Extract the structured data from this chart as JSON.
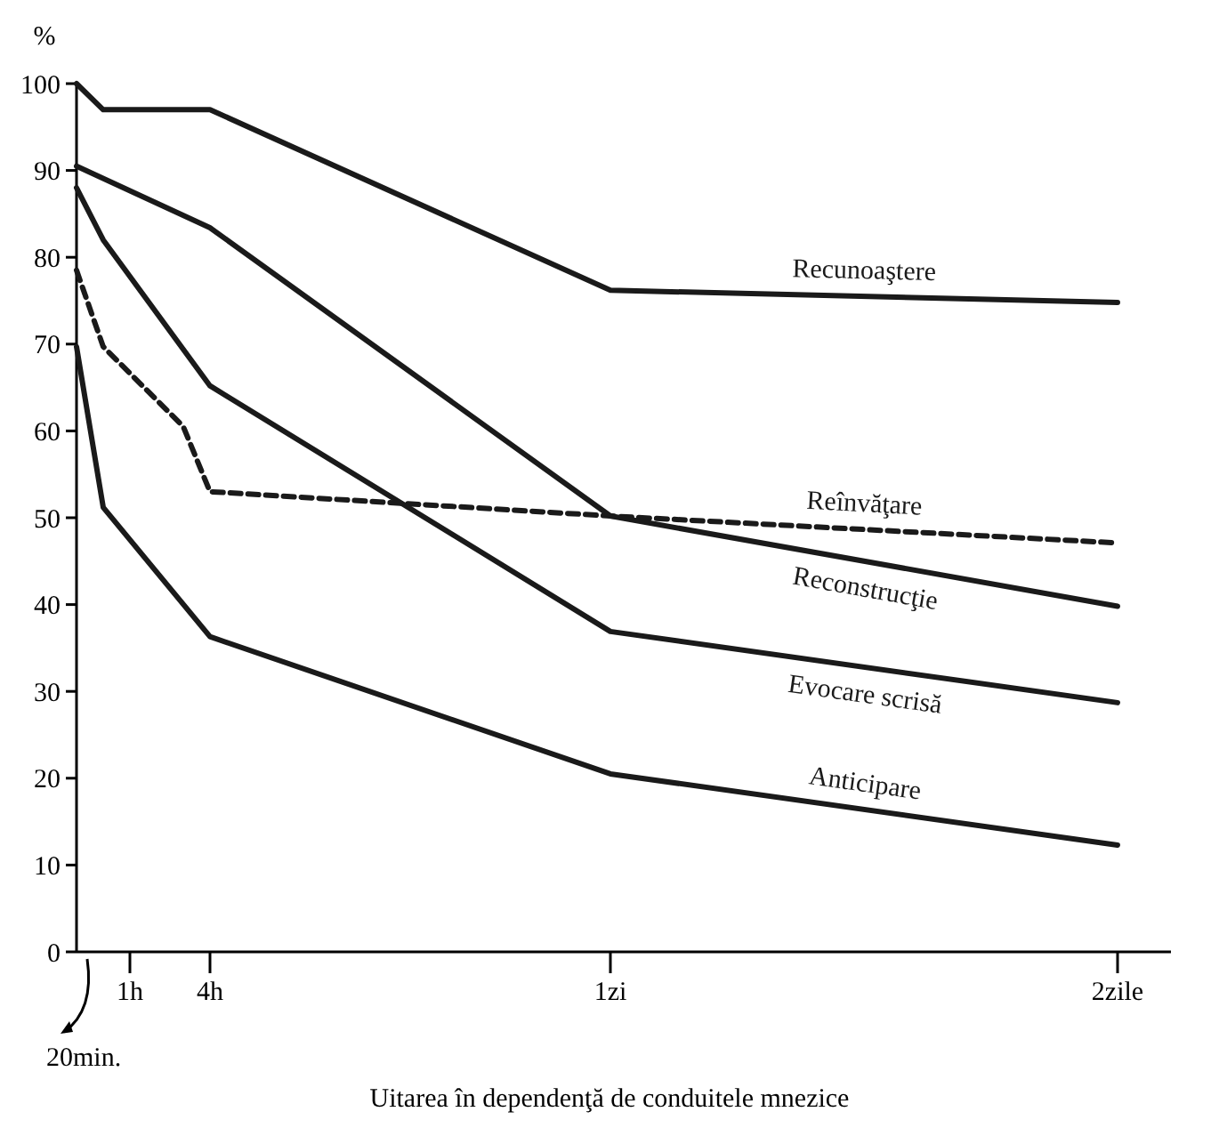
{
  "chart_data": {
    "type": "line",
    "title": "Uitarea în dependenţă de conduitele mnezice",
    "ylabel": "%",
    "ylim": [
      0,
      100
    ],
    "categories": [
      null,
      null,
      "1h",
      null,
      null,
      "4h",
      null,
      null,
      null,
      null,
      null,
      null,
      null,
      null,
      null,
      null,
      null,
      null,
      null,
      null,
      "1zi",
      null,
      null,
      null,
      null,
      null,
      null,
      null,
      null,
      null,
      null,
      null,
      null,
      null,
      null,
      null,
      null,
      null,
      null,
      "2zile"
    ],
    "yticks": [
      0,
      10,
      20,
      30,
      40,
      50,
      60,
      70,
      80,
      90,
      100
    ],
    "grid": false,
    "legend": false,
    "marker": "none",
    "annotations": [
      "20min."
    ],
    "series": [
      {
        "name": "Recunoaştere",
        "color": "#1a1a1a",
        "line_style": "solid",
        "values": [
          100,
          97,
          null,
          null,
          null,
          97,
          null,
          null,
          null,
          null,
          null,
          null,
          null,
          null,
          null,
          null,
          null,
          null,
          null,
          null,
          76.2,
          null,
          null,
          null,
          null,
          null,
          null,
          null,
          null,
          null,
          null,
          null,
          null,
          null,
          null,
          null,
          null,
          null,
          null,
          74.8
        ]
      },
      {
        "name": "Reînvăţare",
        "color": "#1a1a1a",
        "line_style": "dashed",
        "values": [
          78.5,
          69.7,
          null,
          null,
          60.5,
          53,
          null,
          null,
          null,
          null,
          null,
          null,
          null,
          null,
          null,
          null,
          null,
          null,
          null,
          null,
          50.2,
          null,
          null,
          null,
          null,
          null,
          null,
          null,
          null,
          null,
          null,
          null,
          null,
          null,
          null,
          null,
          null,
          null,
          null,
          47.1
        ]
      },
      {
        "name": "Reconstrucţie",
        "color": "#1a1a1a",
        "line_style": "solid",
        "values": [
          90.5,
          null,
          null,
          null,
          null,
          83.4,
          null,
          null,
          null,
          null,
          null,
          null,
          null,
          null,
          null,
          null,
          null,
          null,
          null,
          null,
          50.2,
          null,
          null,
          null,
          null,
          null,
          null,
          null,
          null,
          null,
          null,
          null,
          null,
          null,
          null,
          null,
          null,
          null,
          null,
          39.8
        ]
      },
      {
        "name": "Evocare scrisă",
        "color": "#1a1a1a",
        "line_style": "solid",
        "values": [
          88,
          82,
          null,
          null,
          null,
          65.2,
          null,
          null,
          null,
          null,
          null,
          null,
          null,
          null,
          null,
          null,
          null,
          null,
          null,
          null,
          36.9,
          null,
          null,
          null,
          null,
          null,
          null,
          null,
          null,
          null,
          null,
          null,
          null,
          null,
          null,
          null,
          null,
          null,
          null,
          28.7
        ]
      },
      {
        "name": "Anticipare",
        "color": "#1a1a1a",
        "line_style": "solid",
        "values": [
          69.7,
          51.2,
          null,
          null,
          null,
          36.3,
          null,
          null,
          null,
          null,
          null,
          null,
          null,
          null,
          null,
          null,
          null,
          null,
          null,
          null,
          20.5,
          null,
          null,
          null,
          null,
          null,
          null,
          null,
          null,
          null,
          null,
          null,
          null,
          null,
          null,
          null,
          null,
          null,
          null,
          12.3
        ]
      }
    ]
  }
}
